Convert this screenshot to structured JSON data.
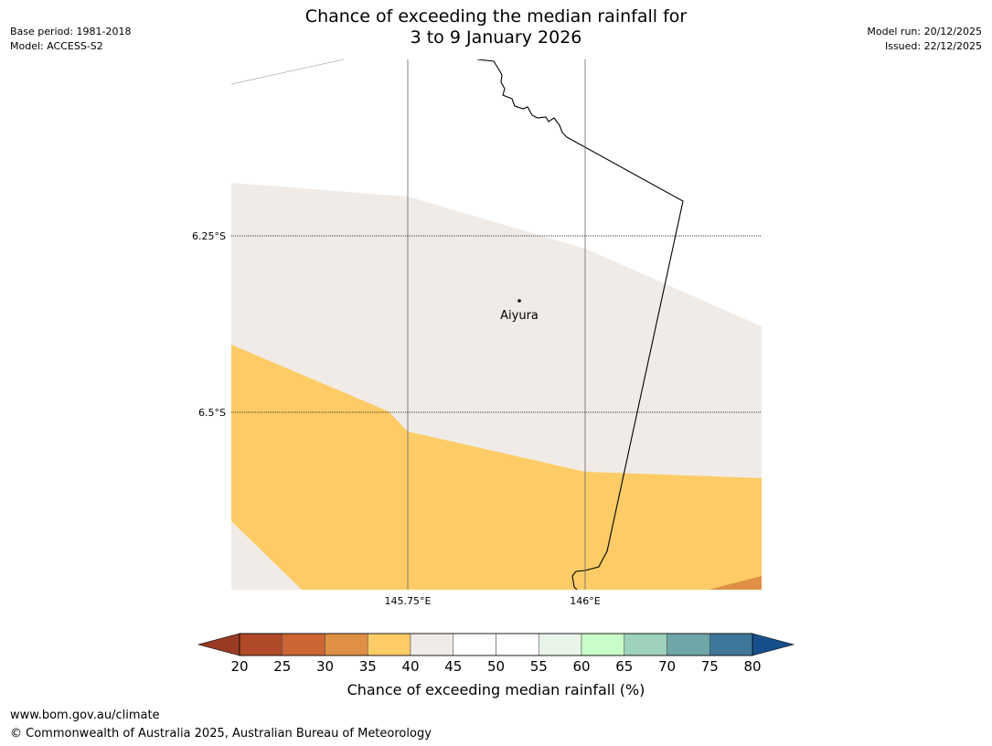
{
  "header": {
    "title_line1": "Chance of exceeding the median rainfall for",
    "title_line2": "3 to 9 January 2026",
    "base_period": "Base period: 1981-2018",
    "model": "Model: ACCESS-S2",
    "model_run": "Model run: 20/12/2025",
    "issued": "Issued: 22/12/2025"
  },
  "map": {
    "lat_labels": [
      "6.25°S",
      "6.5°S"
    ],
    "lon_labels": [
      "145.75°E",
      "146°E"
    ],
    "place": {
      "name": "Aiyura"
    },
    "region_colors": {
      "band_40_45": "#f0ebe6",
      "band_35_40": "#fdcc66",
      "band_30_35": "#e09045",
      "outside": "#ffffff"
    }
  },
  "colorbar": {
    "label": "Chance of exceeding median rainfall (%)",
    "ticks": [
      "20",
      "25",
      "30",
      "35",
      "40",
      "45",
      "50",
      "55",
      "60",
      "65",
      "70",
      "75",
      "80"
    ],
    "colors": [
      "#b04a28",
      "#cc6634",
      "#e09045",
      "#fdcc66",
      "#f0ebe6",
      "#ffffff",
      "#ffffff",
      "#e8f5e8",
      "#c8fcc8",
      "#9dd1b9",
      "#6fa6a8",
      "#3f779b"
    ],
    "under_color": "#983a24",
    "over_color": "#174f8c"
  },
  "footer": {
    "url": "www.bom.gov.au/climate",
    "copyright": "© Commonwealth of Australia 2025, Australian Bureau of Meteorology"
  }
}
